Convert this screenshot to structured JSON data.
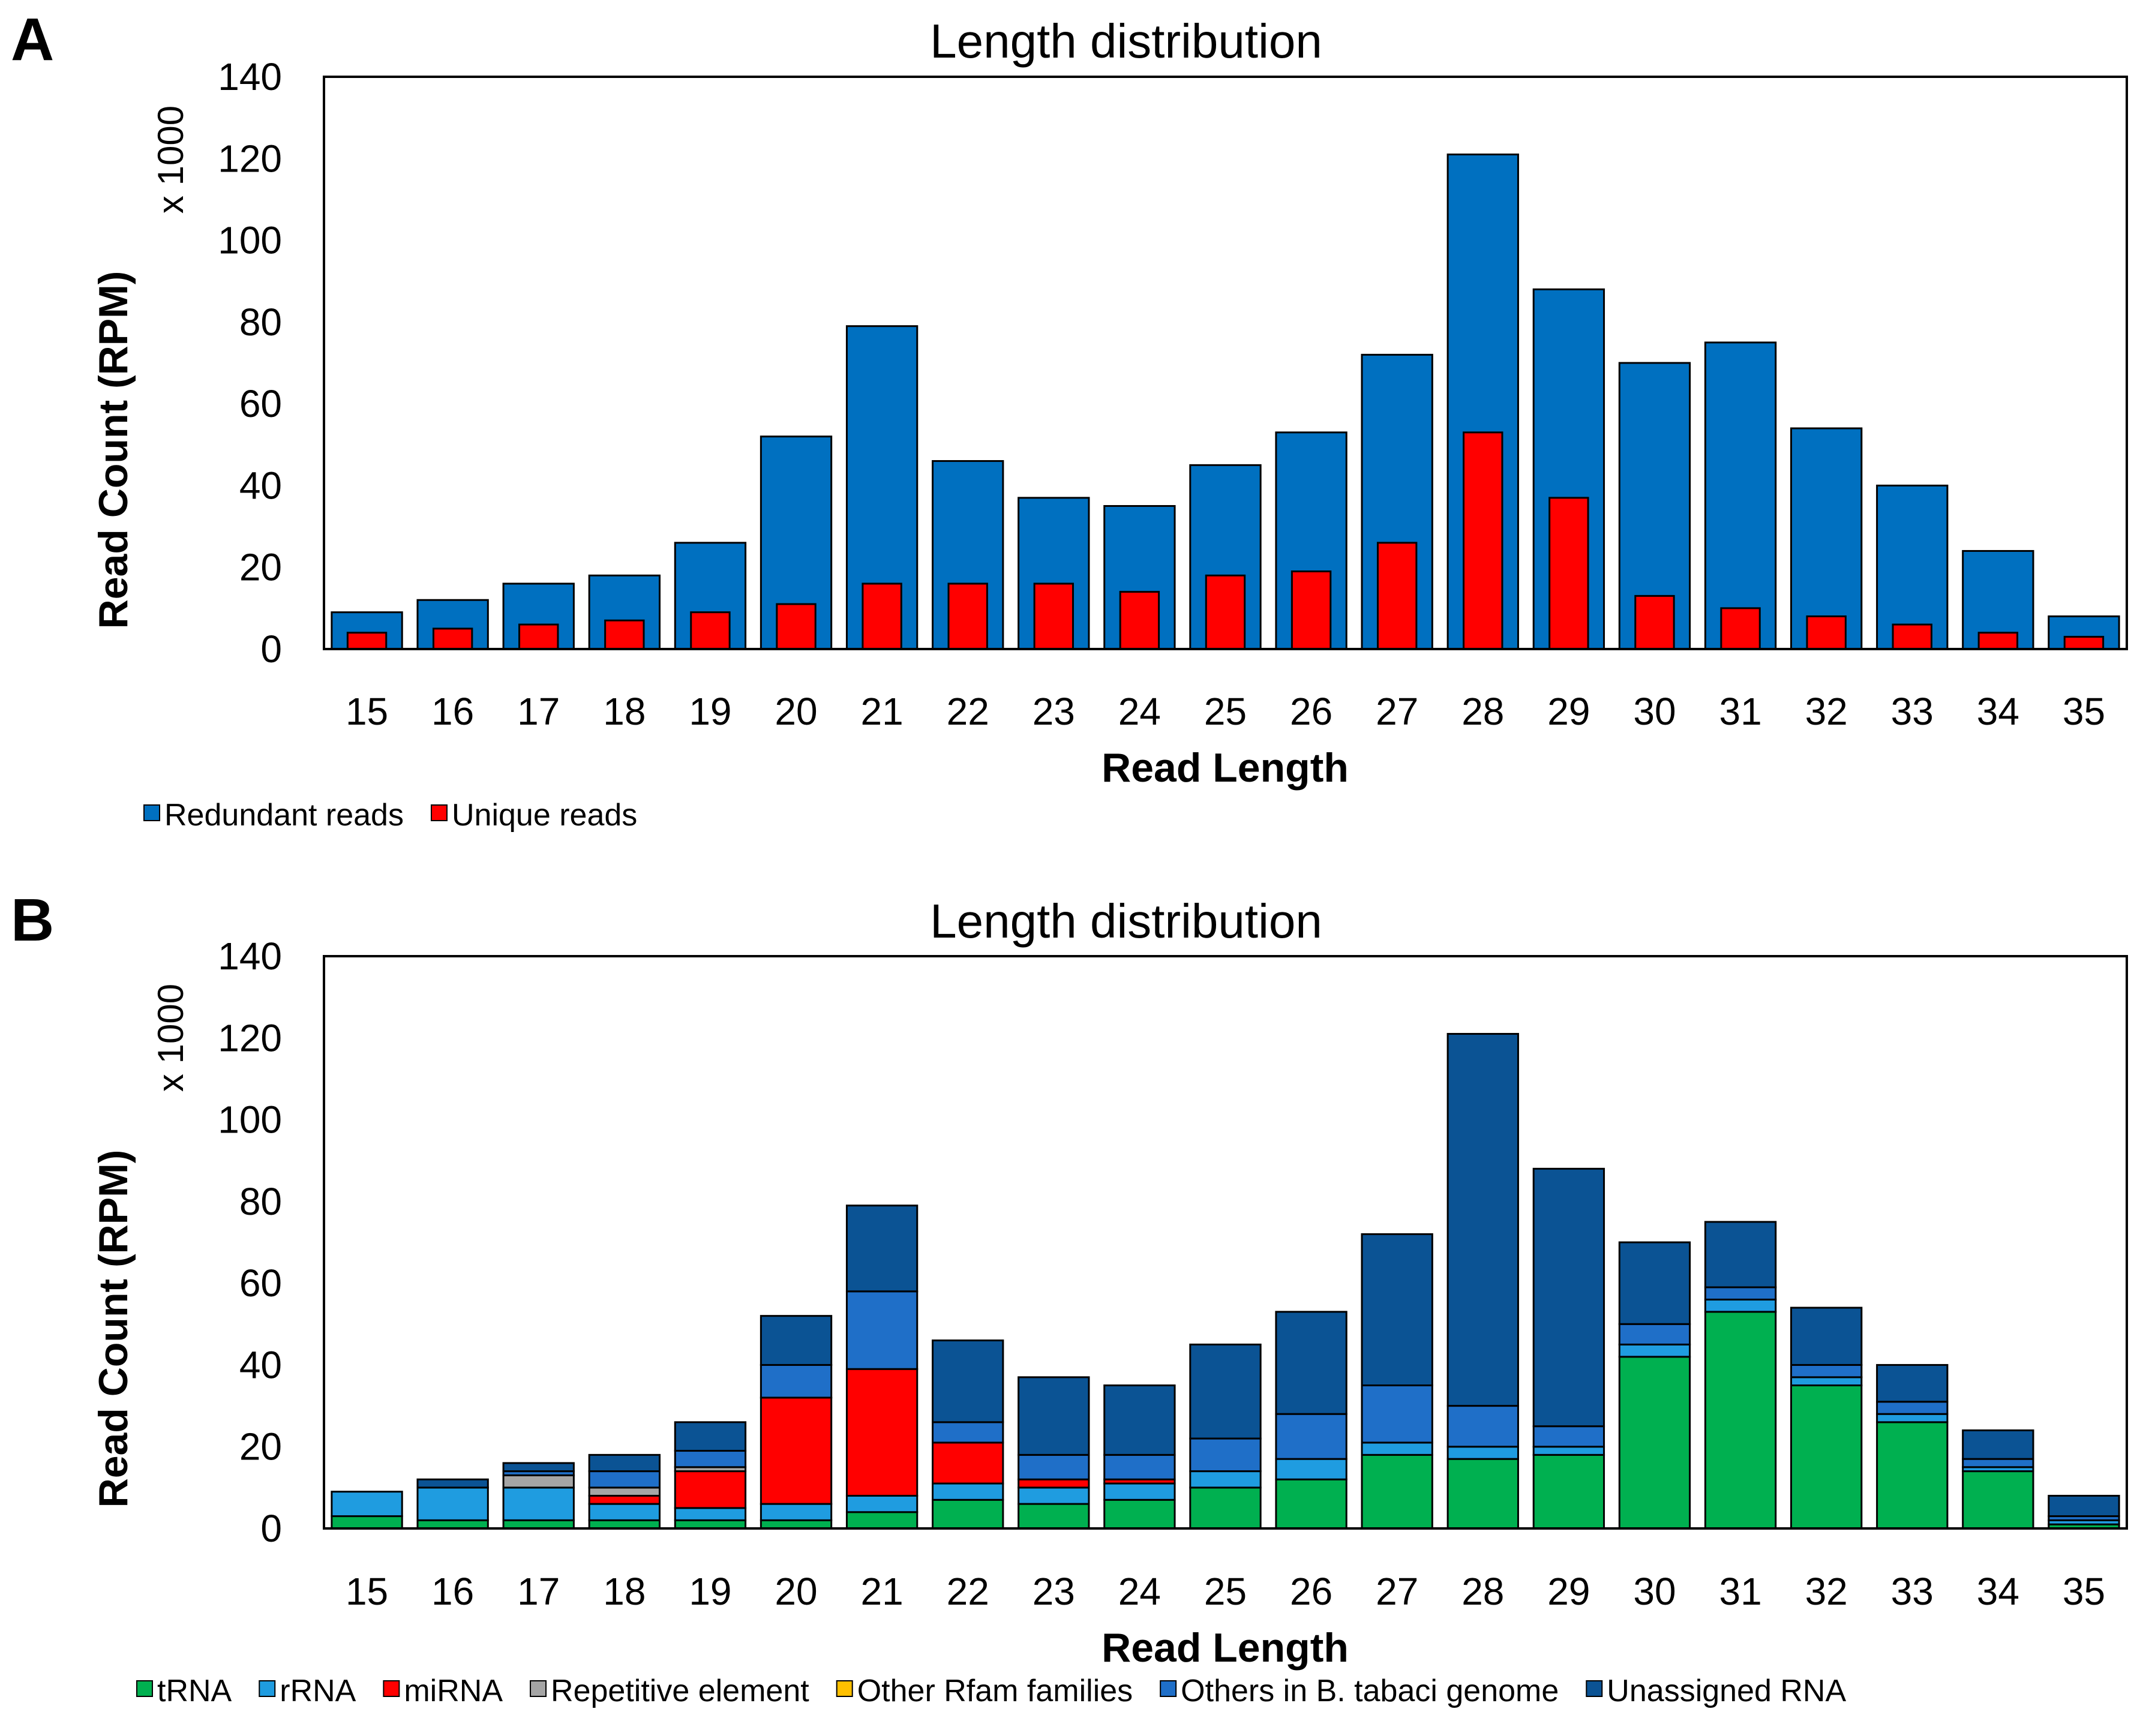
{
  "figure": {
    "panel_a_letter": "A",
    "panel_b_letter": "B"
  },
  "chart_data": [
    {
      "type": "bar",
      "subtype": "overlapping",
      "panel": "A",
      "title": "Length distribution",
      "xlabel": "Read Length",
      "ylabel": "Read Count (RPM)",
      "y_multiplier_label": "x 1000",
      "ylim": [
        0,
        140
      ],
      "yticks": [
        0,
        20,
        40,
        60,
        80,
        100,
        120,
        140
      ],
      "grid": false,
      "legend_position": "bottom-left",
      "categories": [
        "15",
        "16",
        "17",
        "18",
        "19",
        "20",
        "21",
        "22",
        "23",
        "24",
        "25",
        "26",
        "27",
        "28",
        "29",
        "30",
        "31",
        "32",
        "33",
        "34",
        "35"
      ],
      "series": [
        {
          "name": "Redundant reads",
          "color": "#0070C0",
          "values": [
            9,
            12,
            16,
            18,
            26,
            52,
            79,
            46,
            37,
            35,
            45,
            53,
            72,
            121,
            88,
            70,
            75,
            54,
            40,
            24,
            8
          ]
        },
        {
          "name": "Unique reads",
          "color": "#FF0000",
          "values": [
            4,
            5,
            6,
            7,
            9,
            11,
            16,
            16,
            16,
            14,
            18,
            19,
            26,
            53,
            37,
            13,
            10,
            8,
            6,
            4,
            3
          ]
        }
      ]
    },
    {
      "type": "bar",
      "subtype": "stacked",
      "panel": "B",
      "title": "Length distribution",
      "xlabel": "Read Length",
      "ylabel": "Read Count (RPM)",
      "y_multiplier_label": "x 1000",
      "ylim": [
        0,
        140
      ],
      "yticks": [
        0,
        20,
        40,
        60,
        80,
        100,
        120,
        140
      ],
      "grid": false,
      "legend_position": "bottom",
      "categories": [
        "15",
        "16",
        "17",
        "18",
        "19",
        "20",
        "21",
        "22",
        "23",
        "24",
        "25",
        "26",
        "27",
        "28",
        "29",
        "30",
        "31",
        "32",
        "33",
        "34",
        "35"
      ],
      "series": [
        {
          "name": "tRNA",
          "color": "#00B050",
          "values": [
            3,
            2,
            2,
            2,
            2,
            2,
            4,
            7,
            6,
            7,
            10,
            12,
            18,
            17,
            18,
            42,
            53,
            35,
            26,
            14,
            1
          ]
        },
        {
          "name": "rRNA",
          "color": "#1F9CE0",
          "values": [
            6,
            8,
            8,
            4,
            3,
            4,
            4,
            4,
            4,
            4,
            4,
            5,
            3,
            3,
            2,
            3,
            3,
            2,
            2,
            1,
            1
          ]
        },
        {
          "name": "miRNA",
          "color": "#FF0000",
          "values": [
            0,
            0,
            0,
            2,
            9,
            26,
            31,
            10,
            2,
            1,
            0,
            0,
            0,
            0,
            0,
            0,
            0,
            0,
            0,
            0,
            0
          ]
        },
        {
          "name": "Repetitive element",
          "color": "#A5A5A5",
          "values": [
            0,
            0,
            3,
            2,
            1,
            0,
            0,
            0,
            0,
            0,
            0,
            0,
            0,
            0,
            0,
            0,
            0,
            0,
            0,
            0,
            0
          ]
        },
        {
          "name": "Other Rfam families",
          "color": "#FFC000",
          "values": [
            0,
            0,
            0,
            0,
            0,
            0,
            0,
            0,
            0,
            0,
            0,
            0,
            0,
            0,
            0,
            0,
            0,
            0,
            0,
            0,
            0
          ]
        },
        {
          "name": "Others in B. tabaci genome",
          "color": "#1F6FC8",
          "values": [
            0,
            0,
            1,
            4,
            4,
            8,
            19,
            5,
            6,
            6,
            8,
            11,
            14,
            10,
            5,
            5,
            3,
            3,
            3,
            2,
            1
          ]
        },
        {
          "name": "Unassigned RNA",
          "color": "#0B5394",
          "values": [
            0,
            2,
            2,
            4,
            7,
            12,
            21,
            20,
            19,
            17,
            23,
            25,
            37,
            91,
            63,
            20,
            16,
            14,
            9,
            7,
            5
          ]
        }
      ]
    }
  ]
}
